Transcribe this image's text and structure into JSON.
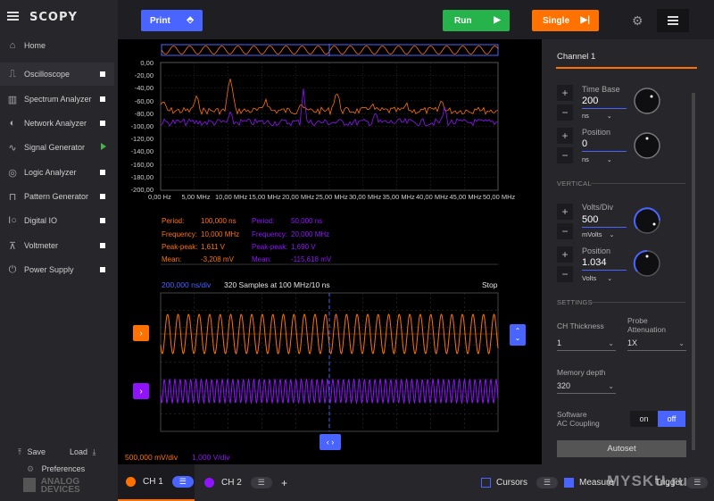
{
  "app": {
    "brand": "SCOPY"
  },
  "sidebar": {
    "home": "Home",
    "items": [
      {
        "label": "Oscilloscope",
        "icon": "oscilloscope-icon",
        "indicator": "square"
      },
      {
        "label": "Spectrum Analyzer",
        "icon": "spectrum-icon",
        "indicator": "square"
      },
      {
        "label": "Network Analyzer",
        "icon": "network-icon",
        "indicator": "square"
      },
      {
        "label": "Signal Generator",
        "icon": "signal-generator-icon",
        "indicator": "play"
      },
      {
        "label": "Logic Analyzer",
        "icon": "logic-icon",
        "indicator": "square"
      },
      {
        "label": "Pattern Generator",
        "icon": "pattern-icon",
        "indicator": "square"
      },
      {
        "label": "Digital IO",
        "icon": "digital-io-icon",
        "indicator": "square"
      },
      {
        "label": "Voltmeter",
        "icon": "voltmeter-icon",
        "indicator": "square"
      },
      {
        "label": "Power Supply",
        "icon": "power-icon",
        "indicator": "square"
      }
    ],
    "save": "Save",
    "load": "Load",
    "preferences": "Preferences",
    "vendor_line1": "ANALOG",
    "vendor_line2": "DEVICES"
  },
  "toolbar": {
    "print": "Print",
    "run": "Run",
    "single": "Single"
  },
  "fft": {
    "y_ticks": [
      "0,00",
      "-20,00",
      "-40,00",
      "-60,00",
      "-80,00",
      "-100,00",
      "-120,00",
      "-140,00",
      "-160,00",
      "-180,00",
      "-200,00"
    ],
    "x_ticks": [
      "0,00 Hz",
      "5,00 MHz",
      "10,00 MHz",
      "15,00 MHz",
      "20,00 MHz",
      "25,00 MHz",
      "30,00 MHz",
      "35,00 MHz",
      "40,00 MHz",
      "45,00 MHz",
      "50,00 MHz"
    ]
  },
  "measurements": {
    "ch1": [
      {
        "label": "Period:",
        "value": "100,000 ns"
      },
      {
        "label": "Frequency:",
        "value": "10,000 MHz"
      },
      {
        "label": "Peak-peak:",
        "value": "1,611 V"
      },
      {
        "label": "Mean:",
        "value": "-3,208 mV"
      }
    ],
    "ch2": [
      {
        "label": "Period:",
        "value": "50,000 ns"
      },
      {
        "label": "Frequency:",
        "value": "20,000 MHz"
      },
      {
        "label": "Peak-peak:",
        "value": "1,690 V"
      },
      {
        "label": "Mean:",
        "value": "-115,618 mV"
      }
    ]
  },
  "scope": {
    "timebase": "200,000 ns/div",
    "samples": "320 Samples at 100 MHz/10 ns",
    "state": "Stop",
    "ch1_scale": "500,000 mV/div",
    "ch2_scale": "1,000 V/div",
    "colors": {
      "ch1": "#ff7200",
      "ch2": "#9013fe",
      "accent": "#4a64ff"
    }
  },
  "panel": {
    "title": "Channel 1",
    "timebase_label": "Time Base",
    "timebase_value": "200",
    "timebase_unit": "ns",
    "tposition_label": "Position",
    "tposition_value": "0",
    "tposition_unit": "ns",
    "vertical": "VERTICAL",
    "volts_label": "Volts/Div",
    "volts_value": "500",
    "volts_unit": "mVolts",
    "vposition_label": "Position",
    "vposition_value": "1.034",
    "vposition_unit": "Volts",
    "settings": "SETTINGS",
    "thickness_label": "CH Thickness",
    "thickness_value": "1",
    "probe_label1": "Probe",
    "probe_label2": "Attenuation",
    "probe_value": "1X",
    "memory_label": "Memory depth",
    "memory_value": "320",
    "coupling_label1": "Software",
    "coupling_label2": "AC Coupling",
    "toggle_on": "on",
    "toggle_off": "off",
    "autoset": "Autoset"
  },
  "bottom": {
    "ch1": "CH 1",
    "ch2": "CH 2",
    "add": "+",
    "cursors": "Cursors",
    "measure": "Measure",
    "trigger": "Trigger"
  },
  "watermark": "MYSKU.ru"
}
